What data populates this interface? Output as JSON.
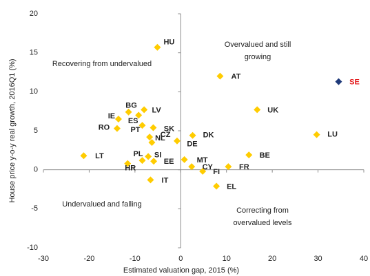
{
  "chart_data": {
    "type": "scatter",
    "x_label": "Estimated valuation gap, 2015 (%)",
    "y_label": "House price y-o-y real growth, 2016Q1 (%)",
    "xlim": [
      -30,
      40
    ],
    "xticks": [
      -30,
      -20,
      -10,
      0,
      10,
      20,
      30,
      40
    ],
    "ylim": [
      -10,
      20
    ],
    "yticks": [
      -10,
      -5,
      0,
      5,
      10,
      15,
      20
    ],
    "annotations": [
      [
        "Recovering from undervalued"
      ],
      [
        "Overvalued and still",
        "growing"
      ],
      [
        "Undervalued and falling"
      ],
      [
        "Correcting from",
        "overvalued levels"
      ]
    ],
    "series": [
      {
        "color": "#ffcc00",
        "label_color": "#222222",
        "labels": [
          "HU",
          "AT",
          "UK",
          "LU",
          "BE",
          "FR",
          "EL",
          "FI",
          "CY",
          "MT",
          "DK",
          "DE",
          "SK",
          "CZ",
          "NL",
          "LV",
          "BG",
          "IE",
          "ES",
          "RO",
          "PT",
          "LT",
          "PL",
          "SI",
          "HR",
          "EE",
          "IT"
        ],
        "x": [
          -5.1,
          8.6,
          16.7,
          29.7,
          14.9,
          10.4,
          7.8,
          4.8,
          2.4,
          0.8,
          2.6,
          -0.8,
          -6.0,
          -6.8,
          -6.3,
          -8.0,
          -11.4,
          -13.6,
          -9.2,
          -13.9,
          -8.4,
          -21.2,
          -8.4,
          -7.1,
          -11.6,
          -5.9,
          -6.6
        ],
        "values": [
          15.7,
          12.0,
          7.7,
          4.5,
          1.9,
          0.4,
          -2.1,
          -0.2,
          0.4,
          1.3,
          4.4,
          3.7,
          5.4,
          4.2,
          3.5,
          7.7,
          7.4,
          6.5,
          7.0,
          5.3,
          5.7,
          1.8,
          1.2,
          1.7,
          0.8,
          1.1,
          -1.3
        ]
      },
      {
        "color": "#1f3a7a",
        "label_color": "#e31a1c",
        "labels": [
          "SE"
        ],
        "x": [
          34.5
        ],
        "values": [
          11.3
        ]
      }
    ]
  }
}
